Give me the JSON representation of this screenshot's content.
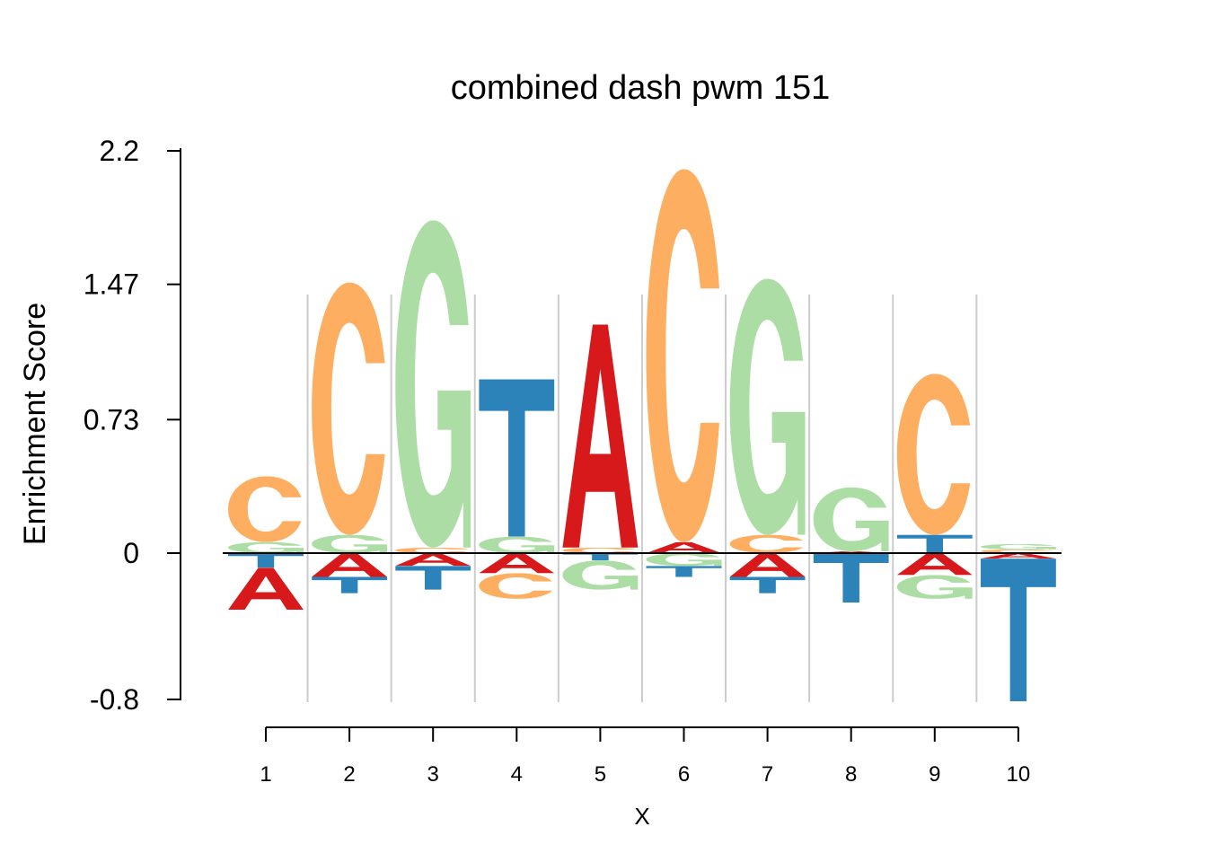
{
  "chart_data": {
    "type": "sequence-logo",
    "title": "combined dash pwm 151",
    "ylabel": "Enrichment Score",
    "xlabel": "X",
    "ylim": [
      -0.8,
      2.2
    ],
    "yticks": [
      -0.8,
      0,
      0.73,
      1.47,
      2.2
    ],
    "ytick_labels": [
      "-0.8",
      "0",
      "0.73",
      "1.47",
      "2.2"
    ],
    "x": [
      "1",
      "2",
      "3",
      "4",
      "5",
      "6",
      "7",
      "8",
      "9",
      "10"
    ],
    "colors": {
      "A": "#d7191c",
      "C": "#fdae61",
      "G": "#abdda4",
      "T": "#2b83ba"
    },
    "positions": [
      {
        "pos": 1,
        "letters": [
          {
            "base": "G",
            "value": 0.06
          },
          {
            "base": "C",
            "value": 0.36
          },
          {
            "base": "T",
            "value": -0.08
          },
          {
            "base": "A",
            "value": -0.23
          }
        ]
      },
      {
        "pos": 2,
        "letters": [
          {
            "base": "G",
            "value": 0.1
          },
          {
            "base": "C",
            "value": 1.38
          },
          {
            "base": "A",
            "value": -0.13
          },
          {
            "base": "T",
            "value": -0.09
          }
        ]
      },
      {
        "pos": 3,
        "letters": [
          {
            "base": "C",
            "value": 0.03
          },
          {
            "base": "G",
            "value": 1.79
          },
          {
            "base": "A",
            "value": -0.07
          },
          {
            "base": "T",
            "value": -0.13
          }
        ]
      },
      {
        "pos": 4,
        "letters": [
          {
            "base": "G",
            "value": 0.09
          },
          {
            "base": "T",
            "value": 0.86
          },
          {
            "base": "A",
            "value": -0.11
          },
          {
            "base": "C",
            "value": -0.14
          }
        ]
      },
      {
        "pos": 5,
        "letters": [
          {
            "base": "C",
            "value": 0.03
          },
          {
            "base": "A",
            "value": 1.22
          },
          {
            "base": "T",
            "value": -0.04
          },
          {
            "base": "G",
            "value": -0.16
          }
        ]
      },
      {
        "pos": 6,
        "letters": [
          {
            "base": "A",
            "value": 0.06
          },
          {
            "base": "C",
            "value": 2.04
          },
          {
            "base": "G",
            "value": -0.07
          },
          {
            "base": "T",
            "value": -0.06
          }
        ]
      },
      {
        "pos": 7,
        "letters": [
          {
            "base": "C",
            "value": 0.1
          },
          {
            "base": "G",
            "value": 1.4
          },
          {
            "base": "A",
            "value": -0.13
          },
          {
            "base": "T",
            "value": -0.09
          }
        ]
      },
      {
        "pos": 8,
        "letters": [
          {
            "base": "A",
            "value": 0.01
          },
          {
            "base": "G",
            "value": 0.35
          },
          {
            "base": "T",
            "value": -0.27
          }
        ]
      },
      {
        "pos": 9,
        "letters": [
          {
            "base": "T",
            "value": 0.1
          },
          {
            "base": "C",
            "value": 0.88
          },
          {
            "base": "A",
            "value": -0.12
          },
          {
            "base": "G",
            "value": -0.13
          }
        ]
      },
      {
        "pos": 10,
        "letters": [
          {
            "base": "C",
            "value": 0.02
          },
          {
            "base": "G",
            "value": 0.03
          },
          {
            "base": "A",
            "value": -0.03
          },
          {
            "base": "T",
            "value": -0.78
          }
        ]
      }
    ]
  }
}
